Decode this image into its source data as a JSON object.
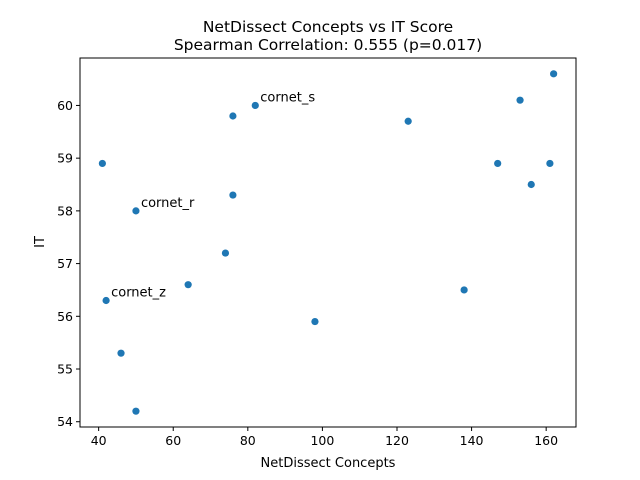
{
  "chart_data": {
    "type": "scatter",
    "title": "NetDissect Concepts vs IT Score",
    "subtitle": "Spearman Correlation: 0.555 (p=0.017)",
    "xlabel": "NetDissect Concepts",
    "ylabel": "IT",
    "xlim": [
      35,
      168
    ],
    "ylim": [
      53.9,
      60.9
    ],
    "xticks": [
      40,
      60,
      80,
      100,
      120,
      140,
      160
    ],
    "yticks": [
      54,
      55,
      56,
      57,
      58,
      59,
      60
    ],
    "grid": false,
    "point_color": "#1f77b4",
    "points": [
      {
        "x": 41,
        "y": 58.9
      },
      {
        "x": 42,
        "y": 56.3,
        "label": "cornet_z"
      },
      {
        "x": 46,
        "y": 55.3
      },
      {
        "x": 50,
        "y": 58.0,
        "label": "cornet_r"
      },
      {
        "x": 50,
        "y": 54.2
      },
      {
        "x": 64,
        "y": 56.6
      },
      {
        "x": 74,
        "y": 57.2
      },
      {
        "x": 76,
        "y": 59.8
      },
      {
        "x": 76,
        "y": 58.3
      },
      {
        "x": 82,
        "y": 60.0,
        "label": "cornet_s"
      },
      {
        "x": 98,
        "y": 55.9
      },
      {
        "x": 123,
        "y": 59.7
      },
      {
        "x": 138,
        "y": 56.5
      },
      {
        "x": 147,
        "y": 58.9
      },
      {
        "x": 153,
        "y": 60.1
      },
      {
        "x": 156,
        "y": 58.5
      },
      {
        "x": 161,
        "y": 58.9
      },
      {
        "x": 162,
        "y": 60.6
      }
    ]
  }
}
